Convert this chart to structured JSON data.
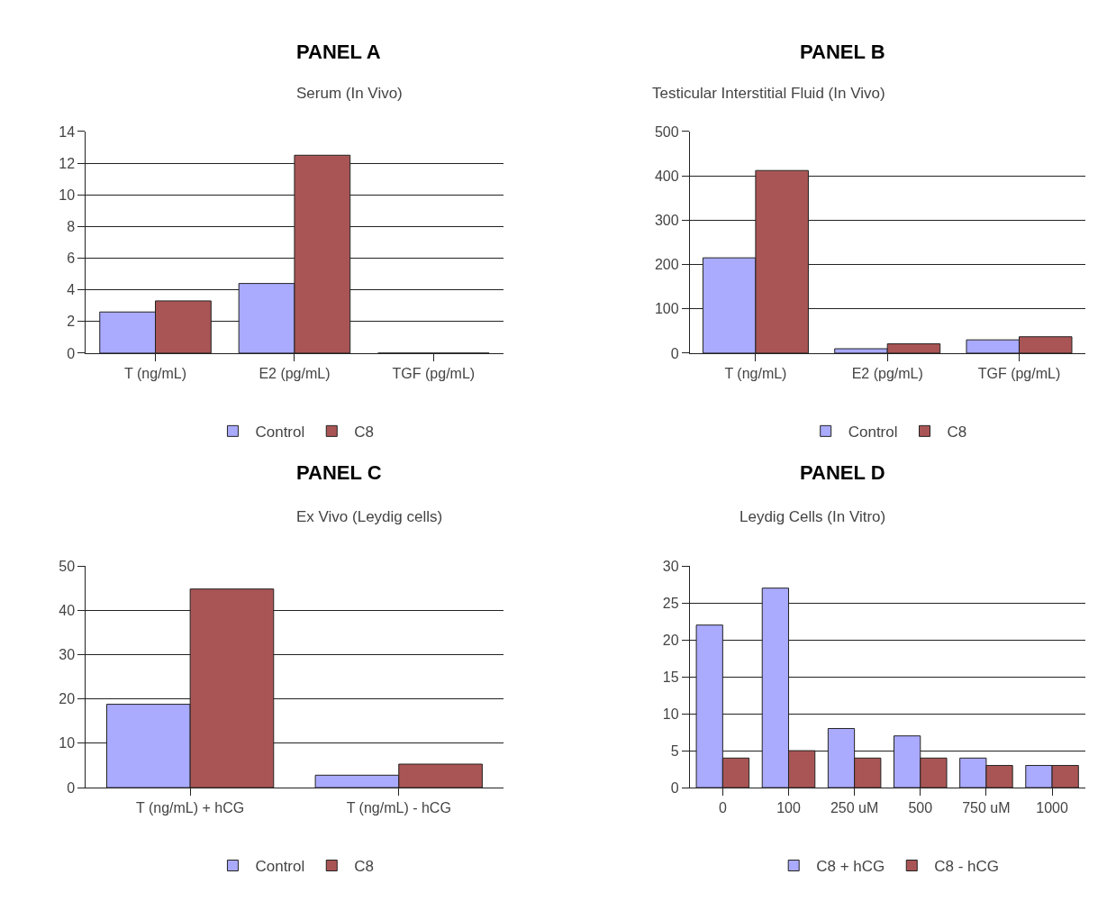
{
  "chart_data": [
    {
      "type": "bar",
      "title": "PANEL A",
      "subtitle": "Serum (In Vivo)",
      "categories": [
        "T (ng/mL)",
        "E2 (pg/mL)",
        "TGF (pg/mL)"
      ],
      "series": [
        {
          "name": "Control",
          "color": "#aaaaff",
          "values": [
            2.6,
            4.4,
            0
          ]
        },
        {
          "name": "C8",
          "color": "#aa5555",
          "values": [
            3.3,
            12.5,
            0
          ]
        }
      ],
      "ylim": [
        0,
        14
      ],
      "yticks": [
        0,
        2,
        4,
        6,
        8,
        10,
        12,
        14
      ],
      "grid": "y",
      "legend": "bottom"
    },
    {
      "type": "bar",
      "title": "PANEL B",
      "subtitle": "Testicular Interstitial Fluid (In Vivo)",
      "categories": [
        "T (ng/mL)",
        "E2 (pg/mL)",
        "TGF (pg/mL)"
      ],
      "series": [
        {
          "name": "Control",
          "color": "#aaaaff",
          "values": [
            215,
            10,
            30
          ]
        },
        {
          "name": "C8",
          "color": "#aa5555",
          "values": [
            412,
            21,
            37
          ]
        }
      ],
      "ylim": [
        0,
        500
      ],
      "yticks": [
        0,
        100,
        200,
        300,
        400,
        500
      ],
      "grid": "y",
      "legend": "bottom"
    },
    {
      "type": "bar",
      "title": "PANEL C",
      "subtitle": "Ex Vivo (Leydig cells)",
      "categories": [
        "T (ng/mL) + hCG",
        "T (ng/mL) - hCG"
      ],
      "series": [
        {
          "name": "Control",
          "color": "#aaaaff",
          "values": [
            18.8,
            2.8
          ]
        },
        {
          "name": "C8",
          "color": "#aa5555",
          "values": [
            44.8,
            5.3
          ]
        }
      ],
      "ylim": [
        0,
        50
      ],
      "yticks": [
        0,
        10,
        20,
        30,
        40,
        50
      ],
      "grid": "y",
      "legend": "bottom"
    },
    {
      "type": "bar",
      "title": "PANEL D",
      "subtitle": "Leydig Cells (In Vitro)",
      "categories": [
        "0",
        "100",
        "250 uM",
        "500",
        "750 uM",
        "1000"
      ],
      "series": [
        {
          "name": "C8 + hCG",
          "color": "#aaaaff",
          "values": [
            22,
            27,
            8,
            7,
            4,
            3
          ]
        },
        {
          "name": "C8 - hCG",
          "color": "#aa5555",
          "values": [
            4,
            5,
            4,
            4,
            3,
            3
          ]
        }
      ],
      "ylim": [
        0,
        30
      ],
      "yticks": [
        0,
        5,
        10,
        15,
        20,
        25,
        30
      ],
      "grid": "y",
      "legend": "bottom"
    }
  ]
}
